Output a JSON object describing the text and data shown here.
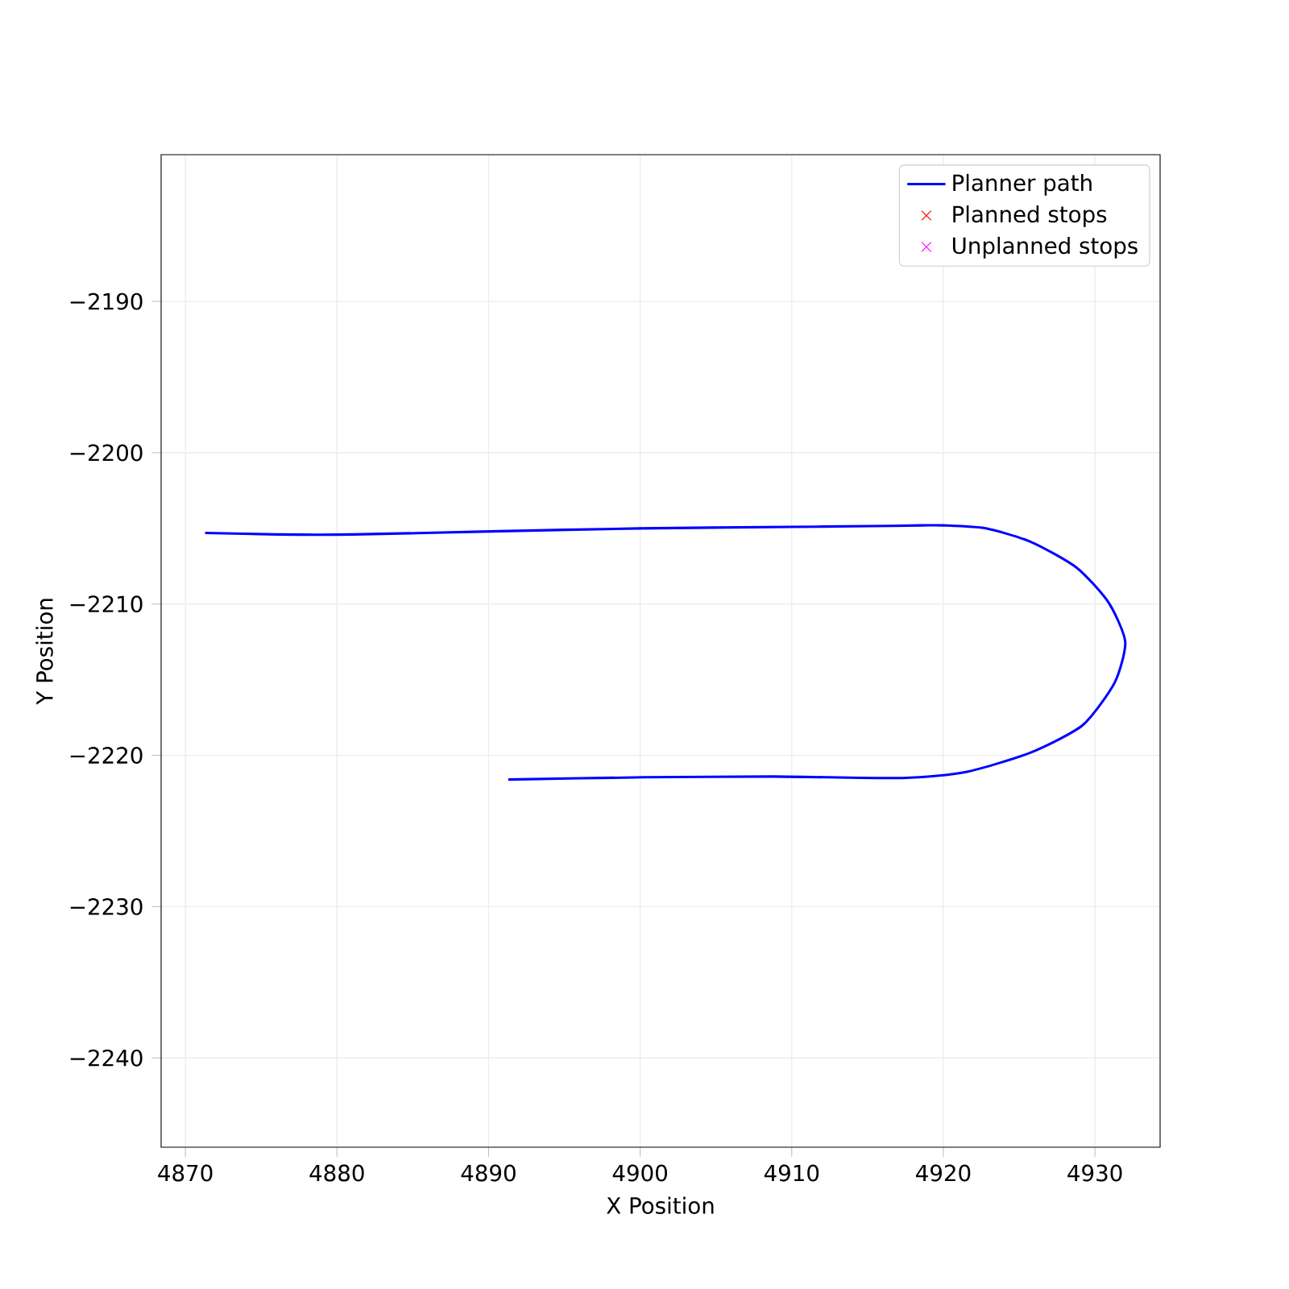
{
  "chart_data": {
    "type": "line",
    "xlabel": "X Position",
    "ylabel": "Y Position",
    "xlim": [
      4868.4,
      4934.3
    ],
    "ylim": [
      -2245.9,
      -2180.3
    ],
    "xticks": [
      4870,
      4880,
      4890,
      4900,
      4910,
      4920,
      4930
    ],
    "yticks": [
      {
        "value": -2190,
        "label": "−2190"
      },
      {
        "value": -2200,
        "label": "−2200"
      },
      {
        "value": -2210,
        "label": "−2210"
      },
      {
        "value": -2220,
        "label": "−2220"
      },
      {
        "value": -2230,
        "label": "−2230"
      },
      {
        "value": -2240,
        "label": "−2240"
      }
    ],
    "grid": true,
    "legend": "top right",
    "series": [
      {
        "name": "Planner path",
        "color": "#0000ff",
        "marker": "none",
        "x": [
          4871.3,
          4876.0,
          4881.1,
          4890.1,
          4900.0,
          4910.0,
          4915.2,
          4918.6,
          4920.0,
          4922.8,
          4925.8,
          4928.8,
          4930.9,
          4932.0,
          4931.3,
          4929.2,
          4925.8,
          4921.5,
          4917.3,
          4908.8,
          4900.3,
          4891.3
        ],
        "values": [
          -2205.3,
          -2205.4,
          -2205.4,
          -2205.2,
          -2205.0,
          -2204.9,
          -2204.85,
          -2204.8,
          -2204.8,
          -2205.0,
          -2205.9,
          -2207.6,
          -2209.9,
          -2212.5,
          -2215.2,
          -2218.0,
          -2219.8,
          -2221.1,
          -2221.5,
          -2221.4,
          -2221.45,
          -2221.6
        ]
      },
      {
        "name": "Planned stops",
        "type": "scatter",
        "color": "#ff0000",
        "marker": "cross"
      },
      {
        "name": "Unplanned stops",
        "type": "scatter",
        "color": "#ff00ff",
        "marker": "cross"
      }
    ]
  }
}
